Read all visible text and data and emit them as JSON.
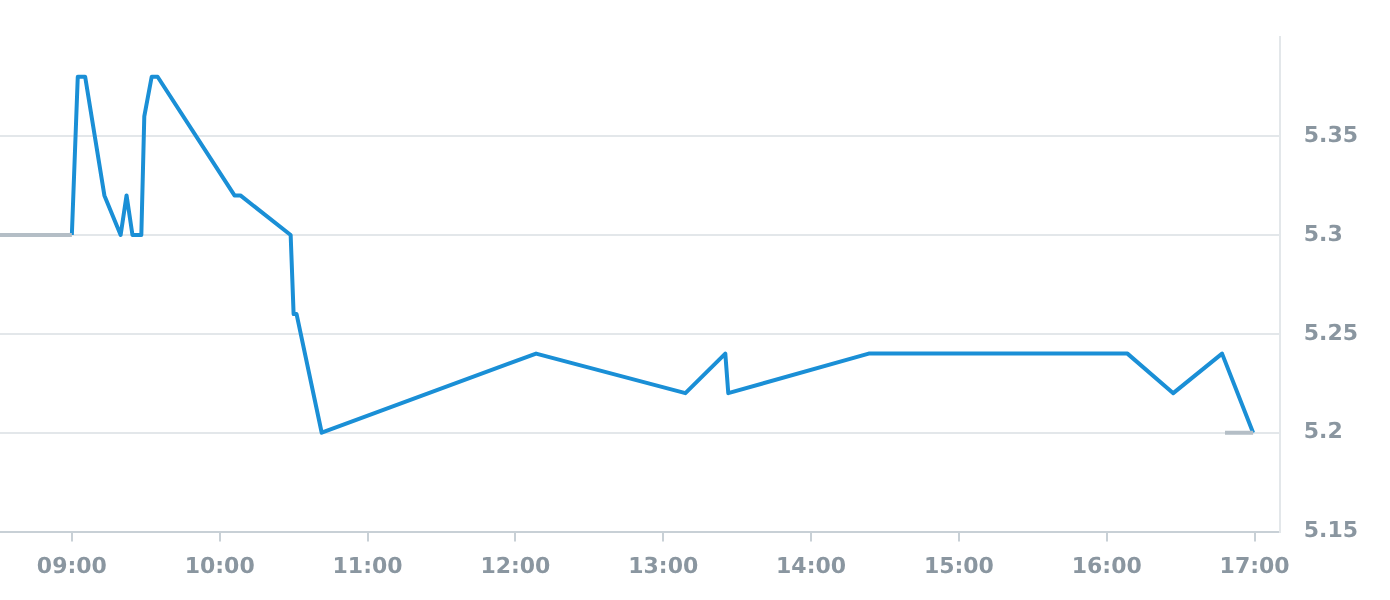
{
  "chart_data": {
    "type": "line",
    "grid": "y",
    "legend": false,
    "marker": "none",
    "line_style": "solid",
    "xlim": [
      8.514,
      17.17
    ],
    "ylim": [
      5.15,
      5.4
    ],
    "xticks": [
      {
        "value": 9,
        "label": "09:00"
      },
      {
        "value": 10,
        "label": "10:00"
      },
      {
        "value": 11,
        "label": "11:00"
      },
      {
        "value": 12,
        "label": "12:00"
      },
      {
        "value": 13,
        "label": "13:00"
      },
      {
        "value": 14,
        "label": "14:00"
      },
      {
        "value": 15,
        "label": "15:00"
      },
      {
        "value": 16,
        "label": "16:00"
      },
      {
        "value": 17,
        "label": "17:00"
      }
    ],
    "yticks": [
      5.15,
      5.2,
      5.25,
      5.3,
      5.35
    ],
    "series": [
      {
        "color": "#b4bec6",
        "x": [
          8.514,
          9.0,
          9.5,
          16.8,
          16.99
        ],
        "values": [
          5.3,
          5.3,
          null,
          5.2,
          5.2
        ]
      },
      {
        "color": "#1a8fd6",
        "x": [
          9.0,
          9.04,
          9.09,
          9.22,
          9.33,
          9.37,
          9.41,
          9.47,
          9.49,
          9.54,
          9.58,
          10.1,
          10.14,
          10.48,
          10.5,
          10.52,
          10.69,
          12.14,
          13.15,
          13.42,
          13.44,
          14.39,
          16.14,
          16.45,
          16.78,
          16.99
        ],
        "values": [
          5.3,
          5.38,
          5.38,
          5.32,
          5.3,
          5.32,
          5.3,
          5.3,
          5.36,
          5.38,
          5.38,
          5.32,
          5.32,
          5.3,
          5.26,
          5.26,
          5.2,
          5.24,
          5.22,
          5.24,
          5.22,
          5.24,
          5.24,
          5.22,
          5.24,
          5.2
        ]
      }
    ]
  }
}
